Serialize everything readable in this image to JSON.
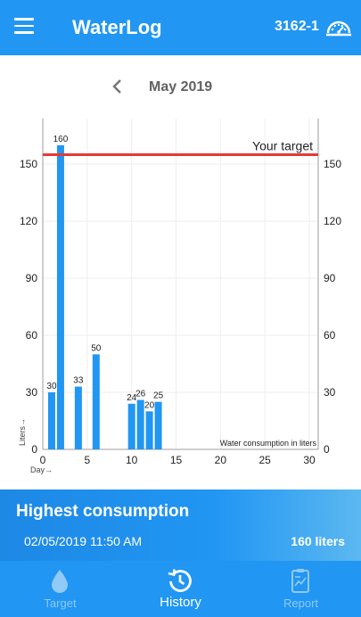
{
  "app": {
    "title": "WaterLog",
    "device_id": "3162-1"
  },
  "period": {
    "month_label": "May 2019"
  },
  "chart_data": {
    "type": "bar",
    "x": [
      1,
      2,
      4,
      6,
      10,
      11,
      12,
      13
    ],
    "values": [
      30,
      160,
      33,
      50,
      24,
      26,
      20,
      25
    ],
    "data_labels": [
      "30",
      "160",
      "33",
      "50",
      "24",
      "26",
      "20",
      "25"
    ],
    "xlabel": "Day→",
    "ylabel": "Liters→",
    "xlim": [
      0,
      31
    ],
    "ylim": [
      0,
      174
    ],
    "x_ticks": [
      "0",
      "5",
      "10",
      "15",
      "20",
      "25",
      "30"
    ],
    "y_ticks": [
      "0",
      "30",
      "60",
      "90",
      "120",
      "150"
    ],
    "target_value": 155,
    "target_label": "Your target",
    "series_label": "Water consumption in liters",
    "grid": true,
    "colors": {
      "bar": "#2196F3",
      "target": "#e53935",
      "grid": "#eeeeee"
    }
  },
  "summary": {
    "title": "Highest consumption",
    "datetime": "02/05/2019 11:50 AM",
    "value": "160 liters"
  },
  "nav": {
    "items": [
      {
        "label": "Target",
        "icon": "water-drop-icon",
        "active": false
      },
      {
        "label": "History",
        "icon": "history-icon",
        "active": true
      },
      {
        "label": "Report",
        "icon": "report-icon",
        "active": false
      }
    ]
  },
  "colors": {
    "primary": "#2196F3",
    "nav_inactive": "#90caf9"
  }
}
